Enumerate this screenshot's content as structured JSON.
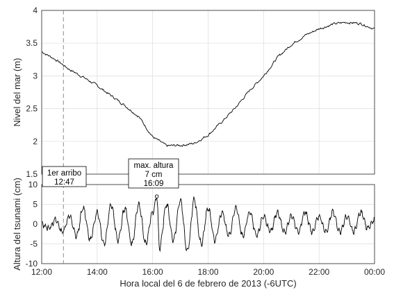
{
  "chart_data": [
    {
      "type": "line",
      "ylabel": "Nivel del mar (m)",
      "xlim": [
        "12:00",
        "00:00"
      ],
      "ylim": [
        1.5,
        4
      ],
      "xticks": [
        "12:00",
        "14:00",
        "16:00",
        "18:00",
        "20:00",
        "22:00",
        "00:00"
      ],
      "yticks": [
        "1.5",
        "2",
        "2.5",
        "3",
        "3.5",
        "4"
      ],
      "grid": true,
      "line_color": "#000000",
      "x": [
        "12:00",
        "12:30",
        "13:00",
        "13:30",
        "14:00",
        "14:30",
        "15:00",
        "15:30",
        "16:00",
        "16:30",
        "17:00",
        "17:30",
        "18:00",
        "18:30",
        "19:00",
        "19:30",
        "20:00",
        "20:30",
        "21:00",
        "21:30",
        "22:00",
        "22:30",
        "23:00",
        "23:30",
        "00:00"
      ],
      "y": [
        3.37,
        3.25,
        3.1,
        2.98,
        2.85,
        2.7,
        2.55,
        2.38,
        2.07,
        1.93,
        1.94,
        1.97,
        2.1,
        2.3,
        2.52,
        2.78,
        3.0,
        3.28,
        3.48,
        3.62,
        3.72,
        3.79,
        3.82,
        3.8,
        3.72
      ]
    },
    {
      "type": "line",
      "xlabel": "Hora local del 6 de febrero de 2013 (-6UTC)",
      "ylabel": "Altura del tsunami (cm)",
      "xlim": [
        "12:00",
        "00:00"
      ],
      "ylim": [
        -10,
        10
      ],
      "xticks": [
        "12:00",
        "14:00",
        "16:00",
        "18:00",
        "20:00",
        "22:00",
        "00:00"
      ],
      "yticks": [
        "-10",
        "-5",
        "0",
        "5",
        "10"
      ],
      "grid": true,
      "line_color": "#000000",
      "x": [
        "12:00",
        "12:15",
        "12:30",
        "12:45",
        "13:00",
        "13:15",
        "13:30",
        "13:45",
        "14:00",
        "14:15",
        "14:30",
        "14:45",
        "15:00",
        "15:15",
        "15:30",
        "15:45",
        "16:00",
        "16:09",
        "16:15",
        "16:30",
        "16:45",
        "17:00",
        "17:15",
        "17:30",
        "17:45",
        "18:00",
        "18:15",
        "18:30",
        "18:45",
        "19:00",
        "19:15",
        "19:30",
        "19:45",
        "20:00",
        "20:15",
        "20:30",
        "20:45",
        "21:00",
        "21:15",
        "21:30",
        "21:45",
        "22:00",
        "22:15",
        "22:30",
        "22:45",
        "23:00",
        "23:15",
        "23:30",
        "23:45",
        "00:00"
      ],
      "y": [
        0,
        -1,
        1,
        -2,
        2,
        -3,
        4,
        -4,
        3,
        -5,
        5,
        -4,
        4,
        -5,
        5,
        -5,
        3,
        7,
        -6,
        5,
        -4,
        6,
        -7,
        6,
        -5,
        4,
        -4,
        3,
        -3,
        4,
        -3,
        3,
        -3,
        2,
        -2,
        3,
        -2,
        2,
        -2,
        3,
        -2,
        2,
        -2,
        3,
        -2,
        2,
        -2,
        3,
        -1,
        1
      ]
    }
  ],
  "annotations": {
    "first_arrival": {
      "line1": "1er arribo",
      "line2": "12:47",
      "time": "12:47"
    },
    "max_height": {
      "line1": "max. altura",
      "line2": "7 cm",
      "line3": "16:09",
      "time": "16:09",
      "value": 7
    }
  }
}
